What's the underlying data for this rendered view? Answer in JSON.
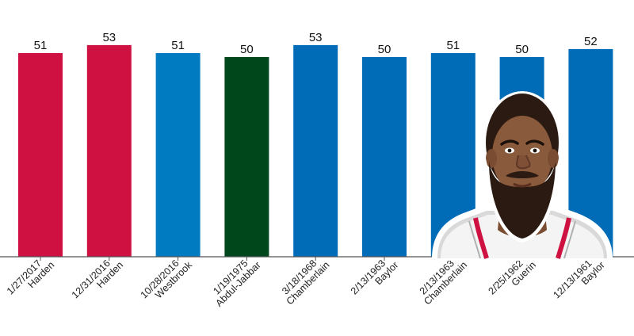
{
  "chart_data": {
    "type": "bar",
    "title": "",
    "xlabel": "",
    "ylabel": "",
    "ylim": [
      0,
      56
    ],
    "grid": false,
    "categories": [
      {
        "date": "1/27/2017",
        "player": "Harden"
      },
      {
        "date": "12/31/2016",
        "player": "Harden"
      },
      {
        "date": "10/28/2016",
        "player": "Westbrook"
      },
      {
        "date": "1/19/1975",
        "player": "Abdul-Jabbar"
      },
      {
        "date": "3/18/1968",
        "player": "Chamberlain"
      },
      {
        "date": "2/13/1963",
        "player": "Baylor"
      },
      {
        "date": "2/13/1963",
        "player": "Chamberlain"
      },
      {
        "date": "2/25/1962",
        "player": "Guerin"
      },
      {
        "date": "12/13/1961",
        "player": "Baylor"
      }
    ],
    "values": [
      51,
      53,
      51,
      50,
      53,
      50,
      51,
      50,
      52
    ],
    "colors": [
      "#ce1141",
      "#ce1141",
      "#007ac1",
      "#00471b",
      "#006bb6",
      "#006bb6",
      "#006bb6",
      "#006bb6",
      "#006bb6"
    ]
  },
  "portrait": {
    "icon": "player-portrait-illustration",
    "skin": "#8a5a3c",
    "beard": "#2b1a12",
    "jersey": "#ffffff",
    "trim": "#ce1141"
  }
}
